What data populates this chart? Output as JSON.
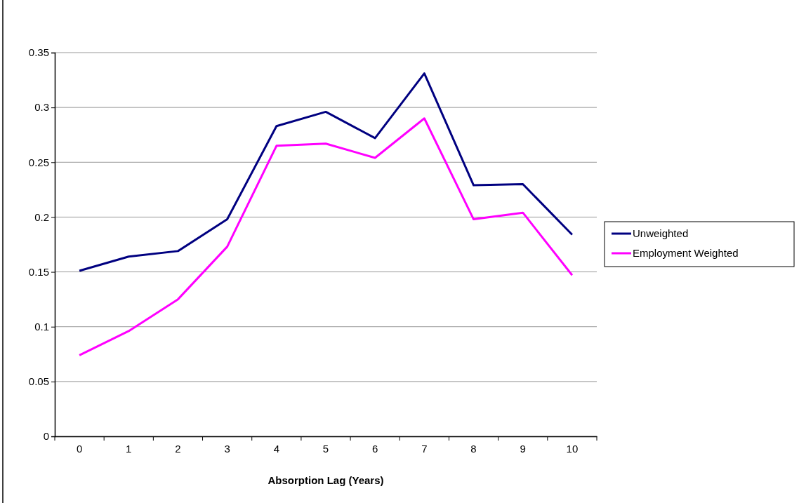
{
  "chart_data": {
    "type": "line",
    "xlabel": "Absorption Lag (Years)",
    "categories": [
      "0",
      "1",
      "2",
      "3",
      "4",
      "5",
      "6",
      "7",
      "8",
      "9",
      "10"
    ],
    "series": [
      {
        "name": "Unweighted",
        "color": "#000080",
        "values": [
          0.151,
          0.164,
          0.169,
          0.198,
          0.283,
          0.296,
          0.272,
          0.331,
          0.229,
          0.23,
          0.184
        ]
      },
      {
        "name": "Employment Weighted",
        "color": "#ff00ff",
        "values": [
          0.074,
          0.096,
          0.125,
          0.173,
          0.265,
          0.267,
          0.254,
          0.29,
          0.198,
          0.204,
          0.147
        ]
      }
    ],
    "ylim": [
      0,
      0.35
    ],
    "yticks": [
      0,
      0.05,
      0.1,
      0.15,
      0.2,
      0.25,
      0.3,
      0.35
    ],
    "grid": "y",
    "legend": "right",
    "marker": "none",
    "line_style": "solid"
  }
}
